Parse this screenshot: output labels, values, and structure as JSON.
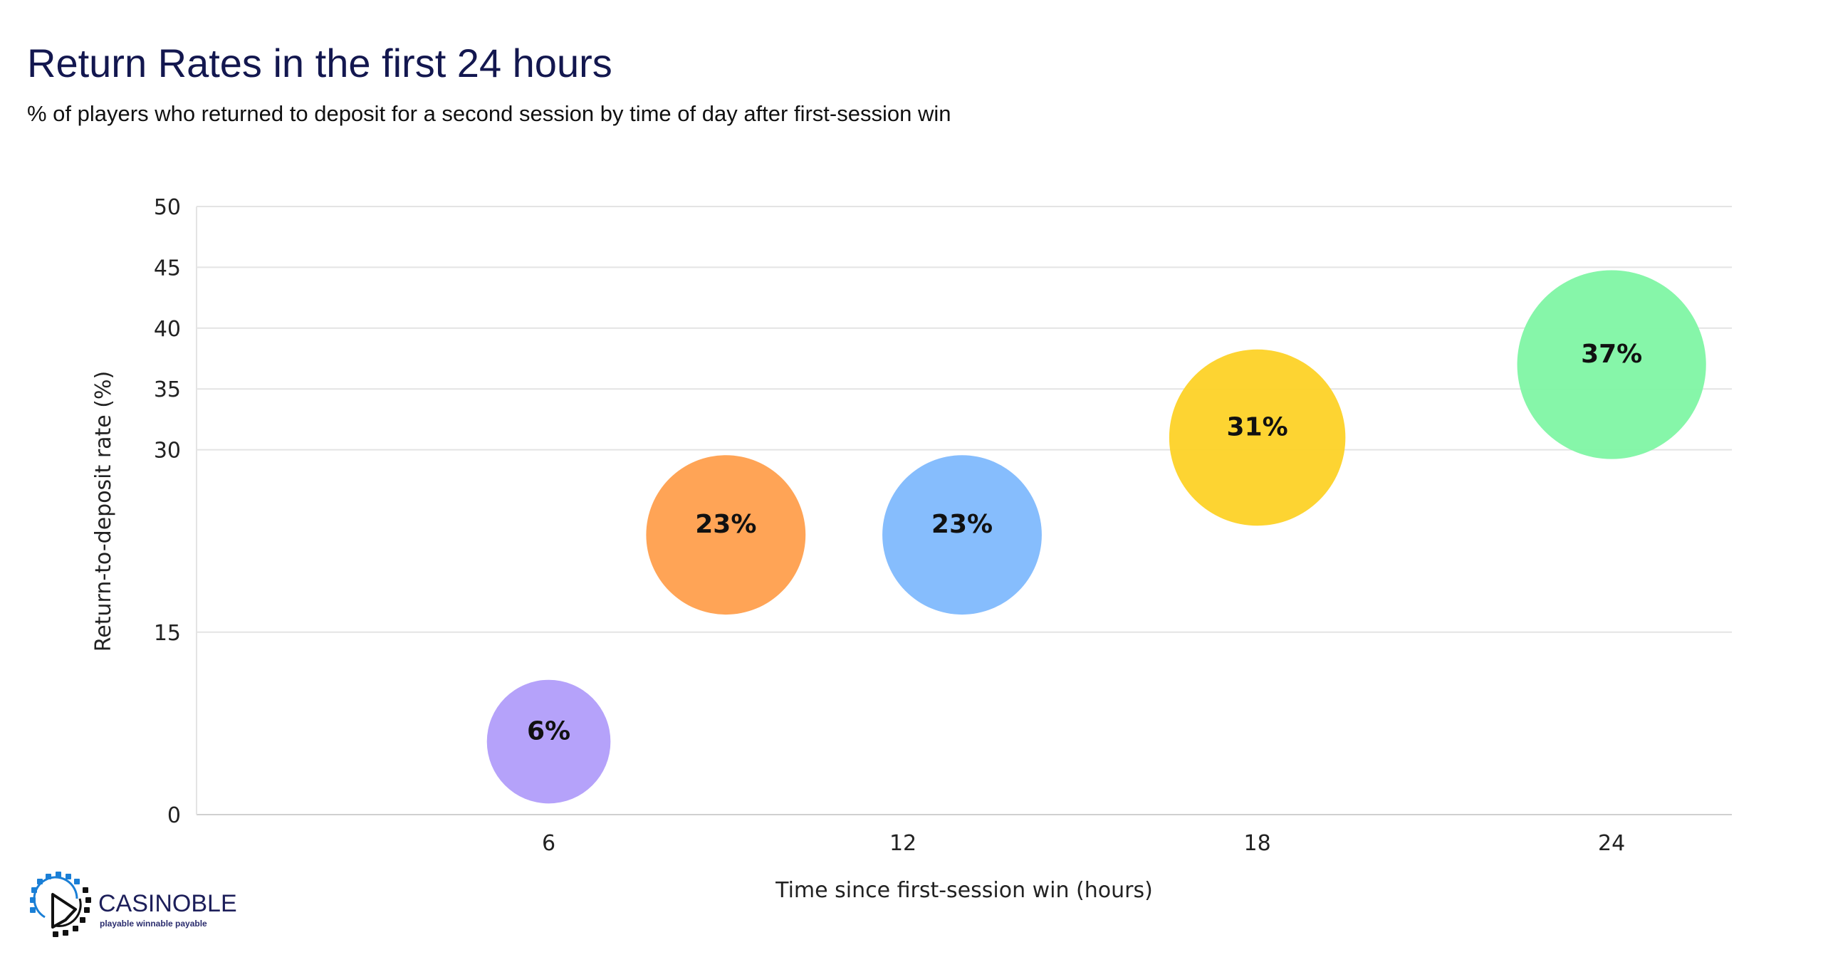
{
  "header": {
    "title": "Return Rates in the first 24 hours",
    "subtitle": "% of players who returned to deposit for a second session by time of day after first-session win"
  },
  "chart_data": {
    "type": "scatter",
    "subtype": "bubble",
    "xlabel": "Time since first-session win (hours)",
    "ylabel": "Return-to-deposit rate (%)",
    "xlim": [
      0,
      26
    ],
    "ylim": [
      0,
      50
    ],
    "x_ticks": [
      6,
      12,
      18,
      24
    ],
    "y_ticks": [
      0,
      15,
      30,
      35,
      40,
      45,
      50
    ],
    "grid": true,
    "points": [
      {
        "x": 6,
        "y": 6,
        "label": "6%",
        "color": "#b19dfa"
      },
      {
        "x": 9,
        "y": 23,
        "label": "23%",
        "color": "#ff9f4d"
      },
      {
        "x": 13,
        "y": 23,
        "label": "23%",
        "color": "#7fb9fd"
      },
      {
        "x": 18,
        "y": 31,
        "label": "31%",
        "color": "#fdd227"
      },
      {
        "x": 24,
        "y": 37,
        "label": "37%",
        "color": "#80f5a4"
      }
    ]
  },
  "logo": {
    "name": "CASINOBLE",
    "tagline": "playable winnable payable",
    "colors": {
      "blue": "#1a7fd6",
      "dark": "#111111"
    }
  }
}
